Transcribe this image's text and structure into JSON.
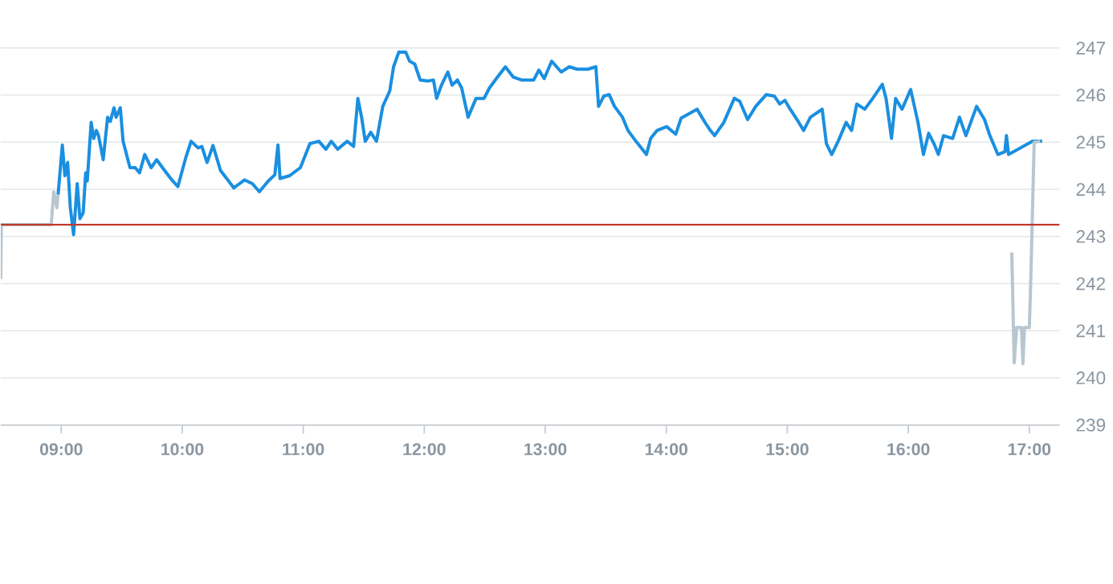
{
  "chart_data": {
    "type": "line",
    "xlim": [
      8.5,
      17.25
    ],
    "ylim": [
      239,
      247
    ],
    "xticks": [
      {
        "value": 9,
        "label": "09:00"
      },
      {
        "value": 10,
        "label": "10:00"
      },
      {
        "value": 11,
        "label": "11:00"
      },
      {
        "value": 12,
        "label": "12:00"
      },
      {
        "value": 13,
        "label": "13:00"
      },
      {
        "value": 14,
        "label": "14:00"
      },
      {
        "value": 15,
        "label": "15:00"
      },
      {
        "value": 16,
        "label": "16:00"
      },
      {
        "value": 17,
        "label": "17:00"
      }
    ],
    "yticks": [
      239,
      240,
      241,
      242,
      243,
      244,
      245,
      246,
      247
    ],
    "grid": "y",
    "legend": false,
    "marker": "none",
    "line_style": "solid",
    "ref_lines": [
      {
        "axis": "y",
        "value": 243.25,
        "color": "#c0392b"
      }
    ],
    "series": [
      {
        "color": "#b8c6d0",
        "x": [
          8.5,
          8.505,
          8.917,
          8.938,
          8.964,
          8.974
        ],
        "values": [
          242.1,
          243.25,
          243.25,
          243.95,
          243.61,
          243.89
        ]
      },
      {
        "color": "#1a8fe0",
        "x": [
          8.974,
          9.009,
          9.03,
          9.053,
          9.075,
          9.102,
          9.132,
          9.154,
          9.181,
          9.202,
          9.215,
          9.247,
          9.268,
          9.29,
          9.308,
          9.347,
          9.383,
          9.405,
          9.436,
          9.453,
          9.488,
          9.511,
          9.568,
          9.611,
          9.647,
          9.69,
          9.743,
          9.788,
          9.854,
          9.92,
          9.964,
          10.03,
          10.073,
          10.131,
          10.162,
          10.205,
          10.254,
          10.316,
          10.382,
          10.426,
          10.514,
          10.58,
          10.637,
          10.712,
          10.765,
          10.791,
          10.808,
          10.888,
          10.976,
          11.055,
          11.129,
          11.187,
          11.231,
          11.284,
          11.363,
          11.416,
          11.451,
          11.482,
          11.512,
          11.557,
          11.605,
          11.657,
          11.715,
          11.746,
          11.789,
          11.847,
          11.878,
          11.921,
          11.966,
          12.032,
          12.076,
          12.102,
          12.142,
          12.195,
          12.23,
          12.274,
          12.309,
          12.362,
          12.428,
          12.494,
          12.538,
          12.604,
          12.67,
          12.736,
          12.802,
          12.904,
          12.947,
          12.991,
          13.053,
          13.132,
          13.198,
          13.264,
          13.352,
          13.418,
          13.44,
          13.484,
          13.528,
          13.572,
          13.638,
          13.683,
          13.749,
          13.836,
          13.871,
          13.924,
          14.003,
          14.078,
          14.122,
          14.179,
          14.254,
          14.32,
          14.364,
          14.399,
          14.475,
          14.562,
          14.607,
          14.672,
          14.739,
          14.826,
          14.892,
          14.937,
          14.98,
          15.024,
          15.09,
          15.135,
          15.191,
          15.288,
          15.323,
          15.367,
          15.42,
          15.486,
          15.531,
          15.574,
          15.64,
          15.706,
          15.785,
          15.816,
          15.861,
          15.895,
          15.948,
          16.019,
          16.08,
          16.125,
          16.168,
          16.212,
          16.248,
          16.291,
          16.366,
          16.423,
          16.476,
          16.564,
          16.63,
          16.674,
          16.74,
          16.798,
          16.811,
          16.828,
          17.026,
          17.106
        ],
        "values": [
          243.89,
          244.94,
          244.29,
          244.57,
          243.61,
          243.04,
          244.12,
          243.38,
          243.5,
          244.35,
          244.18,
          245.42,
          245.08,
          245.25,
          245.14,
          244.63,
          245.53,
          245.44,
          245.73,
          245.53,
          245.73,
          245.02,
          244.46,
          244.46,
          244.35,
          244.74,
          244.46,
          244.63,
          244.4,
          244.18,
          244.06,
          244.68,
          245.02,
          244.88,
          244.91,
          244.57,
          244.93,
          244.4,
          244.18,
          244.03,
          244.2,
          244.12,
          243.95,
          244.18,
          244.31,
          244.94,
          244.23,
          244.29,
          244.46,
          244.97,
          245.02,
          244.85,
          245.02,
          244.85,
          245.02,
          244.91,
          245.93,
          245.53,
          245.02,
          245.21,
          245.02,
          245.76,
          246.09,
          246.6,
          246.91,
          246.91,
          246.72,
          246.66,
          246.32,
          246.3,
          246.32,
          245.93,
          246.21,
          246.49,
          246.21,
          246.32,
          246.15,
          245.53,
          245.93,
          245.93,
          246.15,
          246.38,
          246.6,
          246.38,
          246.32,
          246.32,
          246.53,
          246.35,
          246.72,
          246.49,
          246.6,
          246.55,
          246.55,
          246.6,
          245.76,
          245.98,
          246.01,
          245.76,
          245.53,
          245.25,
          245.02,
          244.74,
          245.08,
          245.25,
          245.33,
          245.17,
          245.51,
          245.59,
          245.7,
          245.42,
          245.25,
          245.14,
          245.42,
          245.93,
          245.87,
          245.48,
          245.76,
          246.01,
          245.98,
          245.81,
          245.89,
          245.7,
          245.44,
          245.25,
          245.53,
          245.7,
          244.97,
          244.74,
          245.02,
          245.42,
          245.25,
          245.81,
          245.7,
          245.93,
          246.23,
          245.93,
          245.08,
          245.93,
          245.7,
          246.12,
          245.42,
          244.74,
          245.19,
          244.97,
          244.74,
          245.14,
          245.08,
          245.53,
          245.14,
          245.76,
          245.48,
          245.14,
          244.74,
          244.8,
          245.14,
          244.74,
          245.02,
          245.02
        ]
      },
      {
        "color": "#b8c6d0",
        "x": [
          16.855,
          16.875,
          16.895,
          16.935,
          16.947,
          16.96,
          17.0,
          17.01,
          17.04,
          17.09
        ],
        "values": [
          242.66,
          240.32,
          241.07,
          241.07,
          240.3,
          241.07,
          241.07,
          241.9,
          245.0,
          245.02
        ]
      }
    ]
  }
}
